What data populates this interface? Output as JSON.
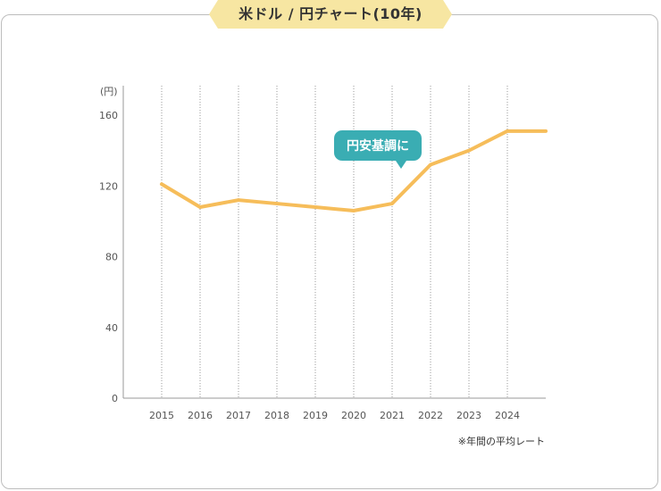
{
  "title": "米ドル / 円チャート(10年)",
  "note": "※年間の平均レート",
  "colors": {
    "line": "#f6bd5a",
    "ribbon": "#f7e6a2",
    "bubble": "#3aadb3",
    "grid": "#9a9a9a",
    "axis": "#999999"
  },
  "chart_data": {
    "type": "line",
    "unit_label": "(円)",
    "x": [
      "2015",
      "2016",
      "2017",
      "2018",
      "2019",
      "2020",
      "2021",
      "2022",
      "2023",
      "2024",
      ""
    ],
    "series": [
      {
        "values": [
          121,
          108,
          112,
          110,
          108,
          106,
          110,
          132,
          140,
          151,
          151
        ]
      }
    ],
    "yticks": [
      0,
      40,
      80,
      120,
      160
    ],
    "ylim": [
      0,
      160
    ],
    "grid": "vertical dotted",
    "annotation": {
      "text": "円安基調に",
      "at_x": "2021"
    }
  }
}
